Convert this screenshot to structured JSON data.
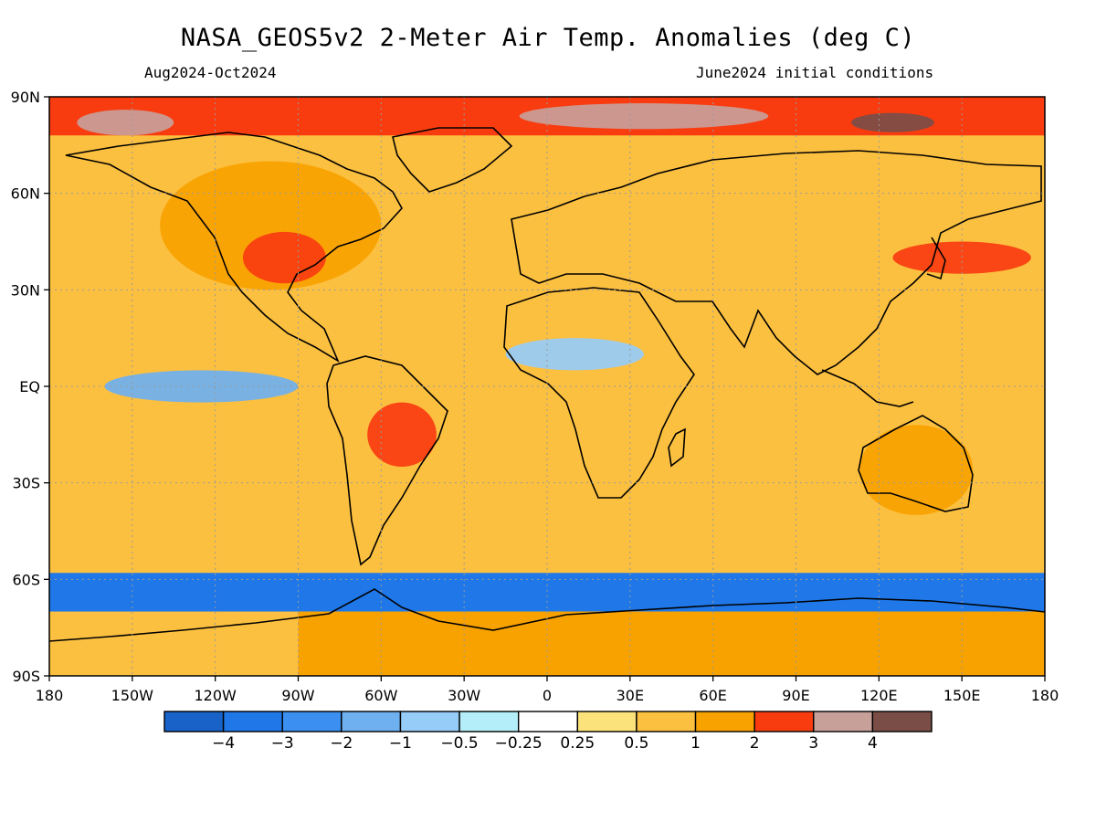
{
  "title": "NASA_GEOS5v2 2-Meter Air Temp. Anomalies (deg C)",
  "subtitle_left": "Aug2024-Oct2024",
  "subtitle_right": "June2024 initial conditions",
  "map": {
    "projection": "equirectangular",
    "lon_range": [
      -180,
      180
    ],
    "lat_range": [
      -90,
      90
    ],
    "lon_ticks": [
      {
        "value": -180,
        "label": "180"
      },
      {
        "value": -150,
        "label": "150W"
      },
      {
        "value": -120,
        "label": "120W"
      },
      {
        "value": -90,
        "label": "90W"
      },
      {
        "value": -60,
        "label": "60W"
      },
      {
        "value": -30,
        "label": "30W"
      },
      {
        "value": 0,
        "label": "0"
      },
      {
        "value": 30,
        "label": "30E"
      },
      {
        "value": 60,
        "label": "60E"
      },
      {
        "value": 90,
        "label": "90E"
      },
      {
        "value": 120,
        "label": "120E"
      },
      {
        "value": 150,
        "label": "150E"
      },
      {
        "value": 180,
        "label": "180"
      }
    ],
    "lat_ticks": [
      {
        "value": 90,
        "label": "90N"
      },
      {
        "value": 60,
        "label": "60N"
      },
      {
        "value": 30,
        "label": "30N"
      },
      {
        "value": 0,
        "label": "EQ"
      },
      {
        "value": -30,
        "label": "30S"
      },
      {
        "value": -60,
        "label": "60S"
      },
      {
        "value": -90,
        "label": "90S"
      }
    ],
    "colorbar": {
      "colors": [
        "#1862c8",
        "#1f77e8",
        "#3b8ff0",
        "#6eb0f0",
        "#96ccf8",
        "#b4eef8",
        "#ffffff",
        "#fce27a",
        "#fcc040",
        "#f8a200",
        "#f83c10",
        "#c8a09a",
        "#7a4e46"
      ],
      "labels": [
        "-4",
        "-3",
        "-2",
        "-1",
        "-0.5",
        "-0.25",
        "0.25",
        "0.5",
        "1",
        "2",
        "3",
        "4"
      ]
    },
    "anomaly_regions": [
      {
        "name": "arctic-band",
        "level": 10,
        "lon": [
          -180,
          180
        ],
        "lat": [
          78,
          90
        ]
      },
      {
        "name": "arctic-warm-north-america",
        "level": 11,
        "lon": [
          -170,
          -135
        ],
        "lat": [
          78,
          86
        ]
      },
      {
        "name": "arctic-warm-siberia",
        "level": 11,
        "lon": [
          -10,
          80
        ],
        "lat": [
          80,
          88
        ]
      },
      {
        "name": "siberia-coast",
        "level": 12,
        "lon": [
          110,
          140
        ],
        "lat": [
          79,
          85
        ]
      },
      {
        "name": "north-america-land",
        "level": 9,
        "lon": [
          -140,
          -60
        ],
        "lat": [
          30,
          70
        ]
      },
      {
        "name": "us-heat",
        "level": 10,
        "lon": [
          -110,
          -80
        ],
        "lat": [
          32,
          48
        ]
      },
      {
        "name": "eurasia-land",
        "level": 8,
        "lon": [
          0,
          170
        ],
        "lat": [
          30,
          75
        ]
      },
      {
        "name": "japan-sea-heat",
        "level": 10,
        "lon": [
          125,
          175
        ],
        "lat": [
          35,
          45
        ]
      },
      {
        "name": "south-america-heat",
        "level": 10,
        "lon": [
          -65,
          -40
        ],
        "lat": [
          -25,
          -5
        ]
      },
      {
        "name": "africa-land",
        "level": 8,
        "lon": [
          -15,
          50
        ],
        "lat": [
          -35,
          20
        ]
      },
      {
        "name": "sahel-cool",
        "level": 4,
        "lon": [
          -15,
          35
        ],
        "lat": [
          5,
          15
        ]
      },
      {
        "name": "equatorial-pacific-cool",
        "level": 3,
        "lon": [
          -160,
          -90
        ],
        "lat": [
          -5,
          5
        ]
      },
      {
        "name": "southern-ocean-cool",
        "level": 1,
        "lon": [
          -180,
          180
        ],
        "lat": [
          -70,
          -58
        ]
      },
      {
        "name": "antarctica-warm",
        "level": 9,
        "lon": [
          -90,
          180
        ],
        "lat": [
          -90,
          -70
        ]
      },
      {
        "name": "australia-warm",
        "level": 9,
        "lon": [
          113,
          154
        ],
        "lat": [
          -40,
          -12
        ]
      }
    ]
  }
}
